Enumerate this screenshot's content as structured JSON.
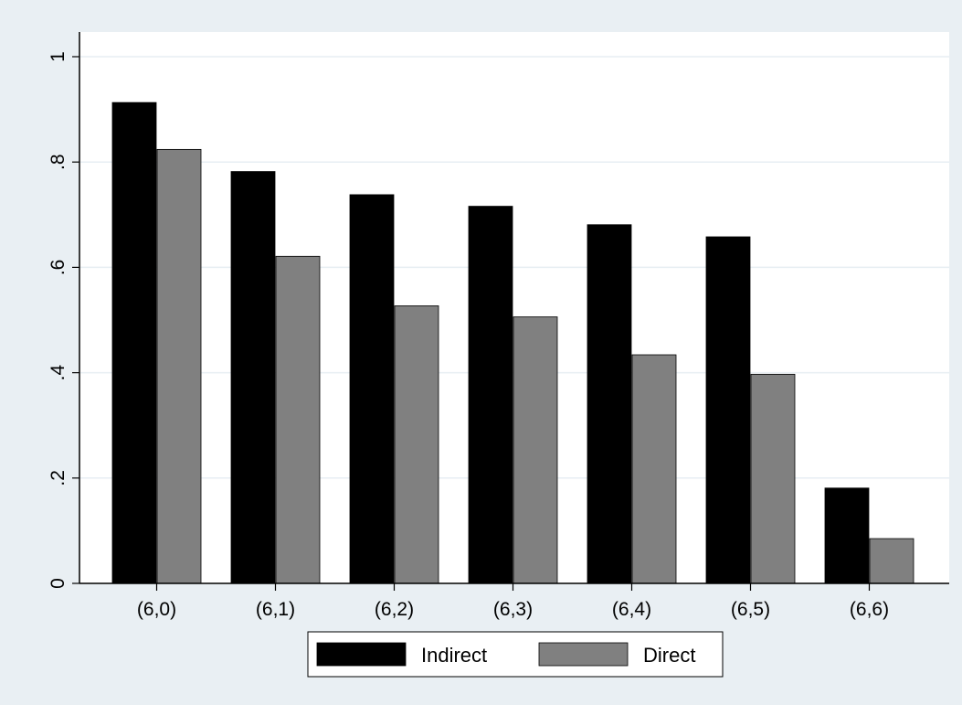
{
  "chart_data": {
    "type": "bar",
    "title": "",
    "xlabel": "",
    "ylabel": "",
    "categories": [
      "(6,0)",
      "(6,1)",
      "(6,2)",
      "(6,3)",
      "(6,4)",
      "(6,5)",
      "(6,6)"
    ],
    "series": [
      {
        "name": "Indirect",
        "color": "#000000",
        "values": [
          0.913,
          0.782,
          0.738,
          0.716,
          0.681,
          0.658,
          0.181
        ]
      },
      {
        "name": "Direct",
        "color": "#808080",
        "values": [
          0.824,
          0.621,
          0.527,
          0.506,
          0.434,
          0.397,
          0.085
        ]
      }
    ],
    "ylim": [
      0,
      1
    ],
    "yticks": [
      0,
      0.2,
      0.4,
      0.6,
      0.8,
      1
    ],
    "ytick_labels": [
      "0",
      ".2",
      ".4",
      ".6",
      ".8",
      "1"
    ],
    "grid": true,
    "legend_position": "bottom"
  }
}
